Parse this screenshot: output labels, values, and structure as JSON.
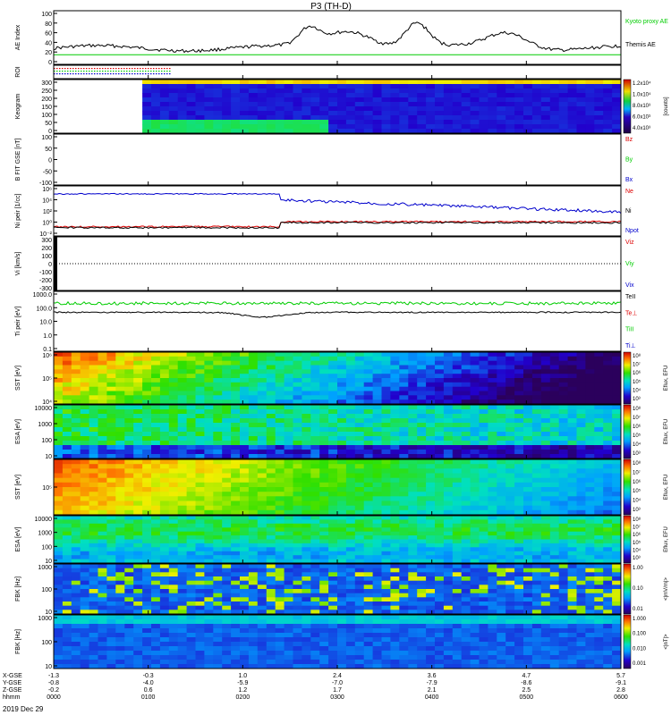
{
  "title": "P3 (TH-D)",
  "date_label": "2019 Dec 29",
  "footer": {
    "row_labels": [
      "X-GSE",
      "Y-GSE",
      "Z-GSE",
      "hhmm"
    ],
    "columns": [
      {
        "x": "-1.3",
        "y": "-0.8",
        "z": "-0.2",
        "t": "0000"
      },
      {
        "x": "-0.3",
        "y": "-4.0",
        "z": "0.6",
        "t": "0100"
      },
      {
        "x": "1.0",
        "y": "-5.9",
        "z": "1.2",
        "t": "0200"
      },
      {
        "x": "2.4",
        "y": "-7.0",
        "z": "1.7",
        "t": "0300"
      },
      {
        "x": "3.6",
        "y": "-7.9",
        "z": "2.1",
        "t": "0400"
      },
      {
        "x": "4.7",
        "y": "-8.6",
        "z": "2.5",
        "t": "0500"
      },
      {
        "x": "5.7",
        "y": "-9.1",
        "z": "2.8",
        "t": "0600"
      }
    ]
  },
  "colors": {
    "red": "#dd0000",
    "green": "#00cc00",
    "blue": "#0000cc",
    "black": "#000000"
  },
  "chart_data": [
    {
      "type": "line",
      "ylabel": "AE Index",
      "ylim": [
        0,
        100
      ],
      "yticks": [
        "100",
        "80",
        "60",
        "40",
        "20",
        "0"
      ],
      "legend": [
        "Kyoto proxy AE",
        "Themis AE"
      ]
    },
    {
      "type": "line",
      "ylabel": "ROI",
      "legend": []
    },
    {
      "type": "heatmap",
      "ylabel": "Keogram",
      "yticks": [
        "300",
        "250",
        "200",
        "150",
        "100",
        "50",
        "0"
      ],
      "colorbar": [
        "1.2x10⁴",
        "1.0x10⁴",
        "8.0x10³",
        "6.0x10³",
        "4.0x10³"
      ],
      "colorbar_label": "[counts]"
    },
    {
      "type": "line",
      "ylabel": "B FIT GSE [nT]",
      "ylim": [
        -100,
        100
      ],
      "yticks": [
        "100",
        "50",
        "0",
        "-50",
        "-100"
      ],
      "legend": [
        "Bz",
        "By",
        "Bx"
      ]
    },
    {
      "type": "line",
      "ylabel": "Ni peir [1/cc]",
      "yticks": [
        "10⁶",
        "10⁴",
        "10²",
        "10⁰",
        "10⁻²"
      ],
      "legend": [
        "Ne",
        "Ni",
        "Npot"
      ]
    },
    {
      "type": "line",
      "ylabel": "Vi [km/s]",
      "ylim": [
        -300,
        300
      ],
      "yticks": [
        "300",
        "200",
        "100",
        "0",
        "-100",
        "-200",
        "-300"
      ],
      "legend": [
        "Viz",
        "Viy",
        "Vix"
      ]
    },
    {
      "type": "line",
      "ylabel": "Ti peir [eV]",
      "yticks": [
        "1000.0",
        "100.0",
        "10.0",
        "1.0",
        "0.1"
      ],
      "legend": [
        "TeII",
        "Te⊥",
        "TiII",
        "Ti⊥"
      ]
    },
    {
      "type": "heatmap",
      "ylabel": "SST [eV]",
      "yticks": [
        "10⁶",
        "10⁵",
        "10⁴"
      ],
      "colorbar": [
        "10⁸",
        "10⁷",
        "10⁶",
        "10⁵",
        "10⁴",
        "10³"
      ],
      "colorbar_label": "Eflux, EFU"
    },
    {
      "type": "heatmap",
      "ylabel": "ESA [eV]",
      "yticks": [
        "10000",
        "1000",
        "100",
        "10"
      ],
      "colorbar": [
        "10⁸",
        "10⁷",
        "10⁶",
        "10⁵",
        "10⁴",
        "10³"
      ],
      "colorbar_label": "Eflux, EFU"
    },
    {
      "type": "heatmap",
      "ylabel": "SST [eV]",
      "yticks": [
        "10⁵"
      ],
      "colorbar": [
        "10⁸",
        "10⁷",
        "10⁶",
        "10⁵",
        "10⁴",
        "10³"
      ],
      "colorbar_label": "Eflux, EFU"
    },
    {
      "type": "heatmap",
      "ylabel": "ESA [eV]",
      "yticks": [
        "10000",
        "1000",
        "100",
        "10"
      ],
      "colorbar": [
        "10⁸",
        "10⁷",
        "10⁶",
        "10⁵",
        "10⁴",
        "10³"
      ],
      "colorbar_label": "Eflux, EFU"
    },
    {
      "type": "heatmap",
      "ylabel": "FBK [Hz]",
      "yticks": [
        "1000",
        "100",
        "10"
      ],
      "colorbar": [
        "1.00",
        "0.10",
        "0.01"
      ],
      "colorbar_label": "<|mV/m|>"
    },
    {
      "type": "heatmap",
      "ylabel": "FBK [Hz]",
      "yticks": [
        "1000",
        "100",
        "10"
      ],
      "colorbar": [
        "1.000",
        "0.100",
        "0.010",
        "0.001"
      ],
      "colorbar_label": "<|nT|>"
    }
  ]
}
